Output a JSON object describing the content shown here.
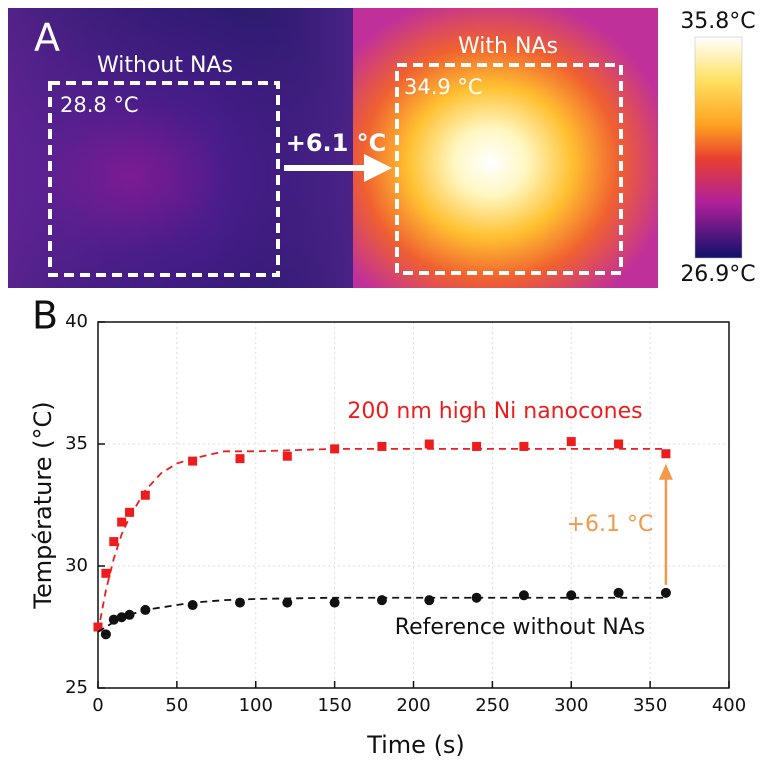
{
  "panel_a": {
    "label": "A",
    "left_title": "Without NAs",
    "left_temp": "28.8 °C",
    "arrow_label": "+6.1 °C",
    "right_title": "With NAs",
    "right_temp": "34.9 °C",
    "colorbar_max": "35.8°C",
    "colorbar_min": "26.9°C"
  },
  "chart_data": {
    "type": "scatter",
    "panel_label": "B",
    "x_label": "Time (s)",
    "y_label": "Température (°C)",
    "xlim": [
      0,
      400
    ],
    "xticks": [
      0,
      50,
      100,
      150,
      200,
      250,
      300,
      350,
      400
    ],
    "ylim": [
      25,
      40
    ],
    "yticks": [
      25,
      30,
      35,
      40
    ],
    "grid": true,
    "series": [
      {
        "name": "200 nm high Ni nanocones",
        "color": "#ee1c1c",
        "marker": "square",
        "x": [
          0,
          5,
          10,
          15,
          20,
          30,
          60,
          90,
          120,
          150,
          180,
          210,
          240,
          270,
          300,
          330,
          360
        ],
        "values": [
          27.5,
          29.7,
          31.0,
          31.8,
          32.2,
          32.9,
          34.3,
          34.4,
          34.5,
          34.8,
          34.9,
          35.0,
          34.9,
          34.9,
          35.1,
          35.0,
          34.6
        ],
        "fit_x": [
          0,
          5,
          10,
          15,
          20,
          30,
          40,
          50,
          60,
          80,
          100,
          150,
          200,
          250,
          300,
          360
        ],
        "fit_values": [
          27.3,
          29.0,
          30.3,
          31.3,
          32.0,
          33.1,
          33.8,
          34.2,
          34.4,
          34.7,
          34.7,
          34.8,
          34.8,
          34.8,
          34.8,
          34.8
        ]
      },
      {
        "name": "Reference without NAs",
        "color": "#111111",
        "marker": "circle",
        "x": [
          5,
          10,
          15,
          20,
          30,
          60,
          90,
          120,
          150,
          180,
          210,
          240,
          270,
          300,
          330,
          360
        ],
        "values": [
          27.2,
          27.8,
          27.9,
          28.0,
          28.2,
          28.4,
          28.5,
          28.5,
          28.5,
          28.6,
          28.6,
          28.7,
          28.8,
          28.8,
          28.9,
          28.9
        ],
        "fit_x": [
          0,
          5,
          10,
          15,
          20,
          30,
          40,
          50,
          60,
          80,
          100,
          150,
          200,
          250,
          300,
          360
        ],
        "fit_values": [
          27.3,
          27.5,
          27.7,
          27.85,
          28.0,
          28.2,
          28.3,
          28.4,
          28.5,
          28.6,
          28.65,
          28.7,
          28.7,
          28.7,
          28.7,
          28.7
        ]
      }
    ],
    "annotation": "+6.1 °C",
    "annotation_color": "#f39a4a"
  }
}
